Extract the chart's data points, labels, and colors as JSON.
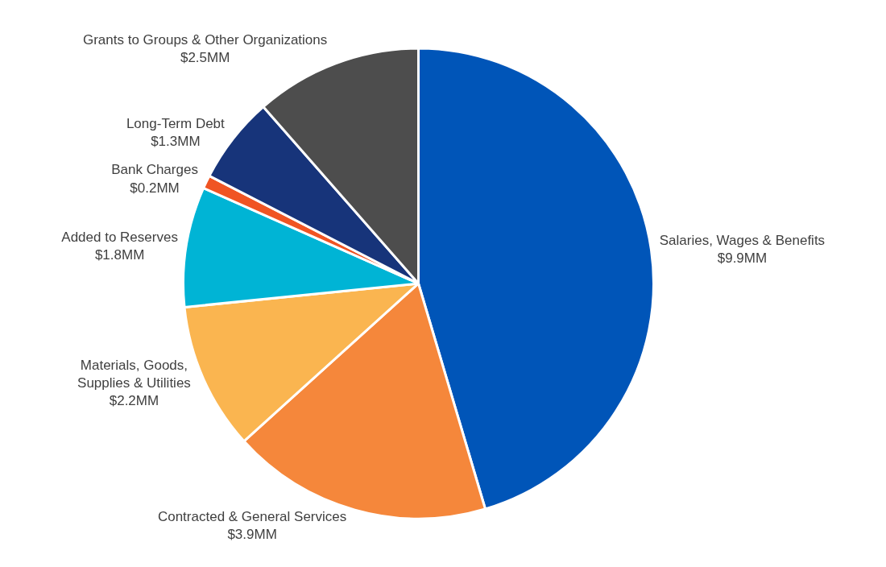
{
  "chart_data": {
    "type": "pie",
    "categories": [
      "Salaries, Wages & Benefits",
      "Contracted & General Services",
      "Materials, Goods,\nSupplies & Utilities",
      "Added to Reserves",
      "Bank Charges",
      "Long-Term Debt",
      "Grants to Groups & Other Organizations"
    ],
    "values": [
      9.9,
      3.9,
      2.2,
      1.8,
      0.2,
      1.3,
      2.5
    ],
    "value_labels": [
      "$9.9MM",
      "$3.9MM",
      "$2.2MM",
      "$1.8MM",
      "$0.2MM",
      "$1.3MM",
      "$2.5MM"
    ],
    "colors": [
      "#0055b8",
      "#f5873b",
      "#fab550",
      "#00b4d5",
      "#f05423",
      "#17347a",
      "#4d4d4d"
    ],
    "legend": false
  }
}
